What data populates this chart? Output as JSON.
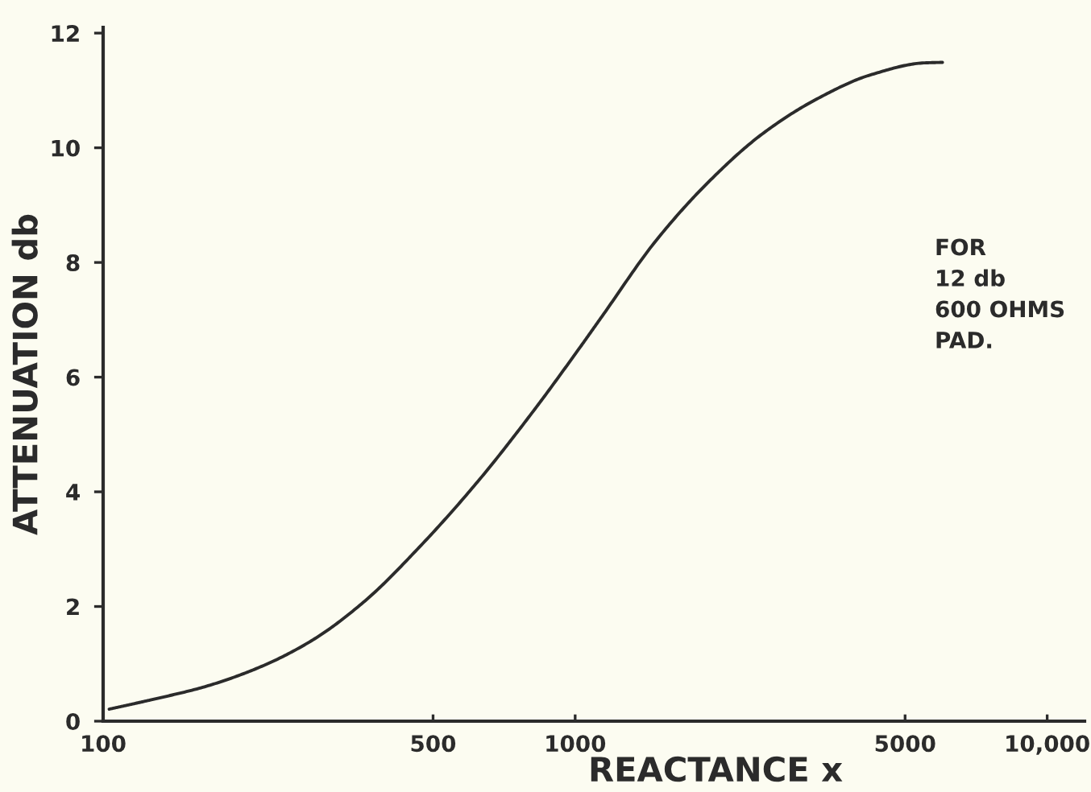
{
  "chart_data": {
    "type": "line",
    "xlabel": "REACTANCE x",
    "ylabel": "ATTENUATION db",
    "annotations": [
      "FOR\n12 db\n600 OHMS\nPAD."
    ],
    "log": "x",
    "xlim": [
      100,
      12000
    ],
    "xticks": [
      100,
      500,
      1000,
      5000,
      {
        "value": 10000,
        "label": "10,000"
      }
    ],
    "ylim": [
      0,
      12.1
    ],
    "yticks": [
      0,
      2,
      4,
      6,
      8,
      10,
      12
    ],
    "grid": false,
    "line_style": "solid",
    "series": [
      {
        "color": "#2b2b2b",
        "x": [
          103,
          126,
          164,
          213,
          276,
          359,
          467,
          622,
          809,
          1020,
          1140,
          1480,
          1920,
          2490,
          3250,
          4220,
          5480,
          6000
        ],
        "values": [
          0.21,
          0.37,
          0.6,
          0.93,
          1.4,
          2.1,
          3.03,
          4.18,
          5.37,
          6.5,
          7.06,
          8.37,
          9.41,
          10.24,
          10.85,
          11.27,
          11.48,
          11.49
        ]
      }
    ]
  }
}
